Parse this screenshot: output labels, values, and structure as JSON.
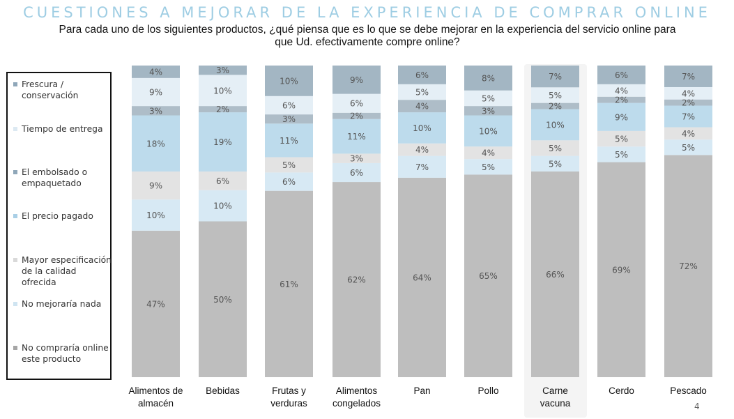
{
  "title": "CUESTIONES A MEJORAR DE LA EXPERIENCIA  DE COMPRAR ONLINE",
  "subtitle_line1": "Para cada uno de los siguientes productos, ¿qué piensa que es lo que se debe mejorar en la experiencia del servicio online para",
  "subtitle_line2": "que Ud. efectivamente compre online?",
  "page_number": "4",
  "colors": {
    "frescura": "#a3b6c3",
    "tiempo": "#e5eff6",
    "embolsado": "#aebdc8",
    "precio": "#bddbec",
    "especificacion": "#e3e3e3",
    "no_mejoraria": "#d7e9f4",
    "no_compraria": "#bebebe",
    "highlight_category": "#f4f4f4"
  },
  "legend": [
    {
      "label": "Frescura / conservación",
      "color": "#8fa7b9"
    },
    {
      "label": "Tiempo de entrega",
      "color": "#dce9f2"
    },
    {
      "label": "El embolsado o empaquetado",
      "color": "#8fa7b9"
    },
    {
      "label": "El precio pagado",
      "color": "#a9cfe6"
    },
    {
      "label": "Mayor especificación de la calidad ofrecida",
      "color": "#d9d9d9"
    },
    {
      "label": "No mejoraría nada",
      "color": "#cfe4f1"
    },
    {
      "label": "No compraría online este producto",
      "color": "#a6a6a6"
    }
  ],
  "chart_data": {
    "type": "bar",
    "stacked": true,
    "percent": true,
    "title": "CUESTIONES A MEJORAR DE LA EXPERIENCIA  DE COMPRAR ONLINE",
    "categories": [
      [
        "Alimentos de",
        "almacén"
      ],
      [
        "Bebidas"
      ],
      [
        "Frutas y",
        "verduras"
      ],
      [
        "Alimentos",
        "congelados"
      ],
      [
        "Pan"
      ],
      [
        "Pollo"
      ],
      [
        "Carne",
        "vacuna"
      ],
      [
        "Cerdo"
      ],
      [
        "Pescado"
      ]
    ],
    "highlighted_category": 6,
    "series": [
      {
        "name": "No compraría online este producto",
        "values": [
          47,
          50,
          61,
          62,
          64,
          65,
          66,
          69,
          72
        ]
      },
      {
        "name": "No mejoraría nada",
        "values": [
          10,
          10,
          6,
          6,
          7,
          5,
          5,
          5,
          5
        ]
      },
      {
        "name": "Mayor especificación de la calidad ofrecida",
        "values": [
          9,
          6,
          5,
          3,
          4,
          4,
          5,
          5,
          4
        ]
      },
      {
        "name": "El precio pagado",
        "values": [
          18,
          19,
          11,
          11,
          10,
          10,
          10,
          9,
          7
        ]
      },
      {
        "name": "El embolsado o empaquetado",
        "values": [
          3,
          2,
          3,
          2,
          4,
          3,
          2,
          2,
          2
        ]
      },
      {
        "name": "Tiempo de entrega",
        "values": [
          9,
          10,
          6,
          6,
          5,
          5,
          5,
          4,
          4
        ]
      },
      {
        "name": "Frescura / conservación",
        "values": [
          4,
          3,
          10,
          9,
          6,
          8,
          7,
          6,
          7
        ]
      }
    ],
    "series_colors": [
      "#bebebe",
      "#d7e9f4",
      "#e3e3e3",
      "#bddbec",
      "#aebdc8",
      "#e5eff6",
      "#a3b6c3"
    ],
    "data_labels": true,
    "label_suffix": "%",
    "legend_position": "left",
    "grid": false
  }
}
